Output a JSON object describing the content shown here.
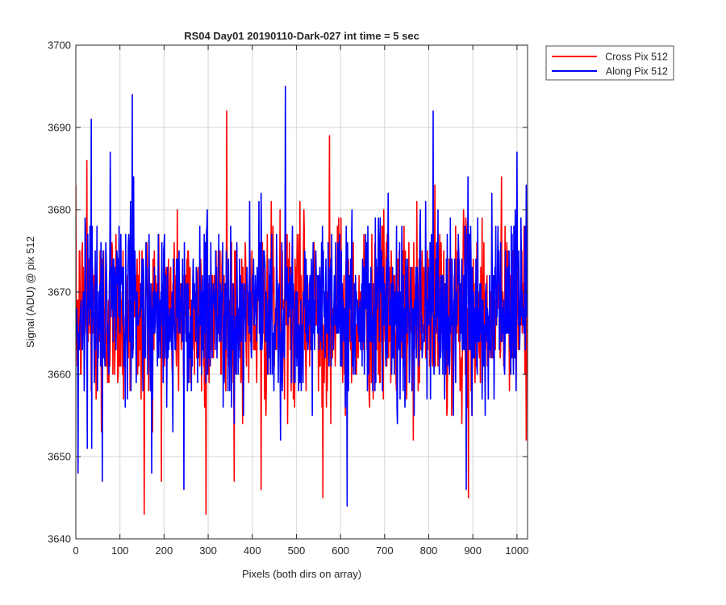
{
  "chart_data": {
    "type": "line",
    "title": "RS04 Day01 20190110-Dark-027 int time = 5 sec",
    "xlabel": "Pixels (both dirs on array)",
    "ylabel": "Signal (ADU) @ pix 512",
    "xlim": [
      0,
      1024
    ],
    "ylim": [
      3640,
      3700
    ],
    "xticks": [
      0,
      100,
      200,
      300,
      400,
      500,
      600,
      700,
      800,
      900,
      1000
    ],
    "yticks": [
      3640,
      3650,
      3660,
      3670,
      3680,
      3690,
      3700
    ],
    "grid": true,
    "legend_position": "outside-top-right",
    "series": [
      {
        "name": "Cross Pix 512",
        "color": "#ff0000",
        "n_points": 1024,
        "mean": 3667.5,
        "std": 5.5,
        "note": "noisy dark-frame signal; values approximated",
        "extremes": [
          {
            "x": 25,
            "y": 3686
          },
          {
            "x": 58,
            "y": 3653
          },
          {
            "x": 155,
            "y": 3643
          },
          {
            "x": 295,
            "y": 3643
          },
          {
            "x": 342,
            "y": 3692
          },
          {
            "x": 420,
            "y": 3646
          },
          {
            "x": 560,
            "y": 3645
          },
          {
            "x": 575,
            "y": 3689
          },
          {
            "x": 890,
            "y": 3645
          },
          {
            "x": 965,
            "y": 3684
          }
        ]
      },
      {
        "name": "Along Pix 512",
        "color": "#0000ff",
        "n_points": 1024,
        "mean": 3668,
        "std": 5.5,
        "note": "noisy dark-frame signal; values approximated",
        "extremes": [
          {
            "x": 5,
            "y": 3648
          },
          {
            "x": 35,
            "y": 3691
          },
          {
            "x": 60,
            "y": 3647
          },
          {
            "x": 128,
            "y": 3694
          },
          {
            "x": 245,
            "y": 3646
          },
          {
            "x": 475,
            "y": 3695
          },
          {
            "x": 615,
            "y": 3644
          },
          {
            "x": 810,
            "y": 3692
          },
          {
            "x": 885,
            "y": 3646
          },
          {
            "x": 1000,
            "y": 3687
          }
        ]
      }
    ]
  }
}
